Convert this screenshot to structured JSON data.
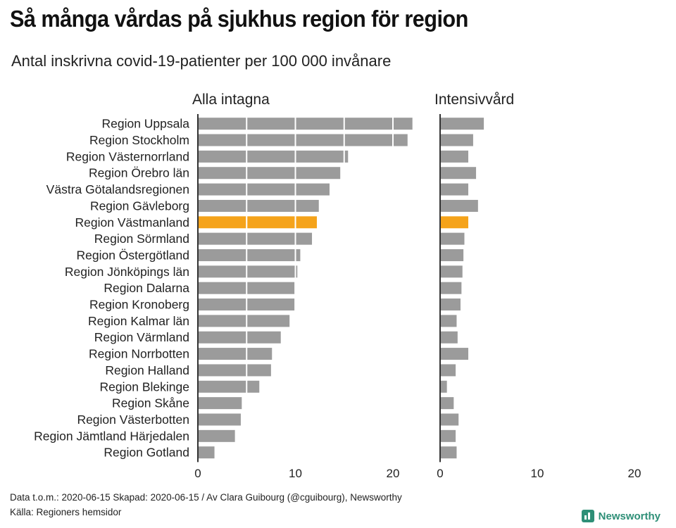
{
  "title": "Så många vårdas på sjukhus region för region",
  "subtitle": "Antal inskrivna covid-19-patienter per 100 000 invånare",
  "footer": {
    "line1": "Data t.o.m.: 2020-06-15 Skapad: 2020-06-15 / Av Clara Guibourg (@cguibourg), Newsworthy",
    "line2": "Källa: Regioners hemsidor"
  },
  "brand": "Newsworthy",
  "colors": {
    "bar": "#9b9b9b",
    "highlight": "#f5a31a",
    "axis": "#333333"
  },
  "chart_data": [
    {
      "type": "bar",
      "orientation": "horizontal",
      "title": "Alla intagna",
      "categories": [
        "Region Uppsala",
        "Region Stockholm",
        "Region Västernorrland",
        "Region Örebro län",
        "Västra Götalandsregionen",
        "Region Gävleborg",
        "Region Västmanland",
        "Region Sörmland",
        "Region Östergötland",
        "Region Jönköpings län",
        "Region Dalarna",
        "Region Kronoberg",
        "Region Kalmar län",
        "Region Värmland",
        "Region Norrbotten",
        "Region Halland",
        "Region Blekinge",
        "Region Skåne",
        "Region Västerbotten",
        "Region Jämtland Härjedalen",
        "Region Gotland"
      ],
      "values": [
        22.0,
        21.5,
        15.4,
        14.6,
        13.5,
        12.4,
        12.2,
        11.7,
        10.5,
        10.2,
        9.9,
        9.9,
        9.4,
        8.5,
        7.6,
        7.5,
        6.3,
        4.5,
        4.4,
        3.8,
        1.7
      ],
      "highlight": "Region Västmanland",
      "xlim": [
        0,
        22
      ],
      "ticks": [
        0,
        10,
        20
      ]
    },
    {
      "type": "bar",
      "orientation": "horizontal",
      "title": "Intensivvård",
      "categories": [
        "Region Uppsala",
        "Region Stockholm",
        "Region Västernorrland",
        "Region Örebro län",
        "Västra Götalandsregionen",
        "Region Gävleborg",
        "Region Västmanland",
        "Region Sörmland",
        "Region Östergötland",
        "Region Jönköpings län",
        "Region Dalarna",
        "Region Kronoberg",
        "Region Kalmar län",
        "Region Värmland",
        "Region Norrbotten",
        "Region Halland",
        "Region Blekinge",
        "Region Skåne",
        "Region Västerbotten",
        "Region Jämtland Härjedalen",
        "Region Gotland"
      ],
      "values": [
        4.5,
        3.4,
        2.9,
        3.7,
        2.9,
        3.9,
        2.9,
        2.5,
        2.4,
        2.3,
        2.2,
        2.1,
        1.7,
        1.8,
        2.9,
        1.6,
        0.7,
        1.4,
        1.9,
        1.6,
        1.7
      ],
      "highlight": "Region Västmanland",
      "xlim": [
        0,
        20
      ],
      "ticks": [
        0,
        10,
        20
      ]
    }
  ]
}
